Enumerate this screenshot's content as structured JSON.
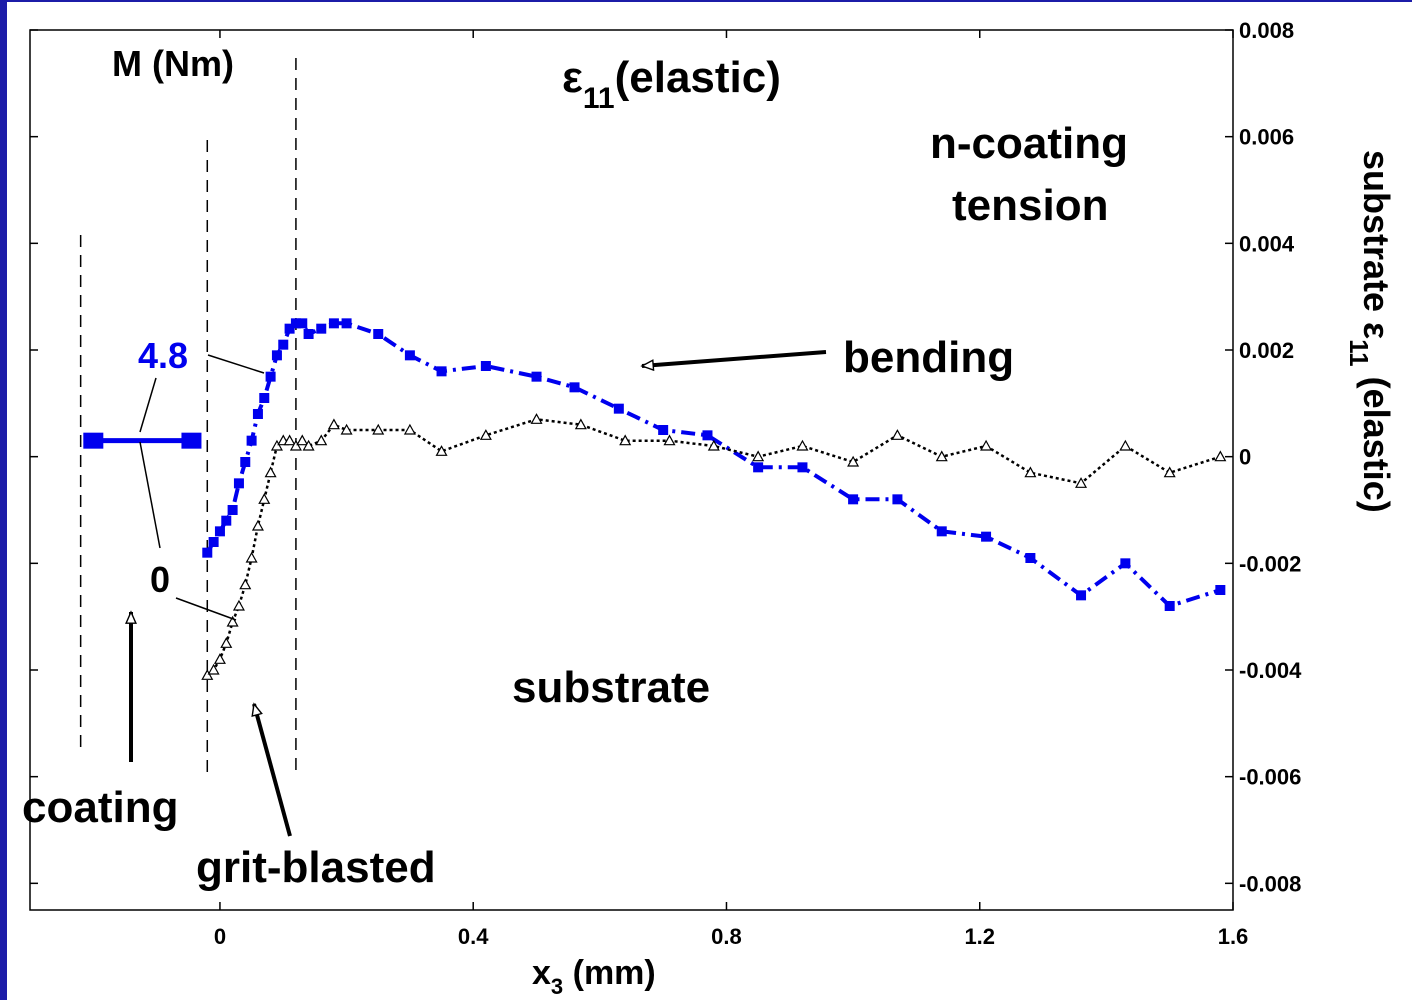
{
  "chart_data": {
    "type": "line",
    "title": "ε11(elastic)",
    "title_main": "ε",
    "title_sub": "11",
    "title_suffix": "(elastic)",
    "xlabel_main": "x",
    "xlabel_sub": "3",
    "xlabel_suffix": " (mm)",
    "ylabel_right_main": "substrate   ε",
    "ylabel_right_sub": "11",
    "ylabel_right_suffix": "  (elastic)",
    "xlim": [
      -0.3,
      1.6
    ],
    "ylim": [
      -0.0085,
      0.008
    ],
    "xticks": [
      0,
      0.4,
      0.8,
      1.2,
      1.6
    ],
    "xtick_labels": [
      "0",
      "0.4",
      "0.8",
      "1.2",
      "1.6"
    ],
    "yticks": [
      0.008,
      0.006,
      0.004,
      0.002,
      0,
      -0.002,
      -0.004,
      -0.006,
      -0.008
    ],
    "ytick_labels": [
      "0.008",
      "0.006",
      "0.004",
      "0.002",
      "0",
      "-0.002",
      "-0.004",
      "-0.006",
      "-0.008"
    ],
    "legend_title": "M (Nm)",
    "vlines_x": [
      -0.22,
      -0.02,
      0.12
    ],
    "series": [
      {
        "name": "4.8",
        "color": "#0000ee",
        "style": "dashdot-square",
        "coating_segment": {
          "x": [
            -0.2,
            -0.045
          ],
          "y": [
            0.0003,
            0.0003
          ]
        },
        "x": [
          -0.02,
          -0.01,
          0.0,
          0.01,
          0.02,
          0.03,
          0.04,
          0.05,
          0.06,
          0.07,
          0.08,
          0.09,
          0.1,
          0.11,
          0.12,
          0.13,
          0.14,
          0.16,
          0.18,
          0.2,
          0.25,
          0.3,
          0.35,
          0.42,
          0.5,
          0.56,
          0.63,
          0.7,
          0.77,
          0.85,
          0.92,
          1.0,
          1.07,
          1.14,
          1.21,
          1.28,
          1.36,
          1.43,
          1.5,
          1.58
        ],
        "values": [
          -0.0018,
          -0.0016,
          -0.0014,
          -0.0012,
          -0.001,
          -0.0005,
          -0.0001,
          0.0003,
          0.0008,
          0.0011,
          0.0015,
          0.0019,
          0.0021,
          0.0024,
          0.0025,
          0.0025,
          0.0023,
          0.0024,
          0.0025,
          0.0025,
          0.0023,
          0.0019,
          0.0016,
          0.0017,
          0.0015,
          0.0013,
          0.0009,
          0.0005,
          0.0004,
          -0.0002,
          -0.0002,
          -0.0008,
          -0.0008,
          -0.0014,
          -0.0015,
          -0.0019,
          -0.0026,
          -0.002,
          -0.0028,
          -0.0025
        ]
      },
      {
        "name": "0",
        "color": "#000000",
        "style": "dotted-triangle",
        "x": [
          -0.02,
          -0.01,
          0.0,
          0.01,
          0.02,
          0.03,
          0.04,
          0.05,
          0.06,
          0.07,
          0.08,
          0.09,
          0.1,
          0.11,
          0.12,
          0.13,
          0.14,
          0.16,
          0.18,
          0.2,
          0.25,
          0.3,
          0.35,
          0.42,
          0.5,
          0.57,
          0.64,
          0.71,
          0.78,
          0.85,
          0.92,
          1.0,
          1.07,
          1.14,
          1.21,
          1.28,
          1.36,
          1.43,
          1.5,
          1.58
        ],
        "values": [
          -0.0041,
          -0.004,
          -0.0038,
          -0.0035,
          -0.0031,
          -0.0028,
          -0.0024,
          -0.0019,
          -0.0013,
          -0.0008,
          -0.0003,
          0.0002,
          0.0003,
          0.0003,
          0.0002,
          0.0003,
          0.0002,
          0.0003,
          0.0006,
          0.0005,
          0.0005,
          0.0005,
          0.0001,
          0.0004,
          0.0007,
          0.0006,
          0.0003,
          0.0003,
          0.0002,
          0.0,
          0.0002,
          -0.0001,
          0.0004,
          0.0,
          0.0002,
          -0.0003,
          -0.0005,
          0.0002,
          -0.0003,
          0.0
        ]
      }
    ],
    "annotations": {
      "n_coating": "n-coating",
      "tension": "tension",
      "bending": "bending",
      "substrate": "substrate",
      "coating": "coating",
      "grit_blasted": "grit-blasted",
      "label_48": "4.8",
      "label_0": "0"
    }
  }
}
